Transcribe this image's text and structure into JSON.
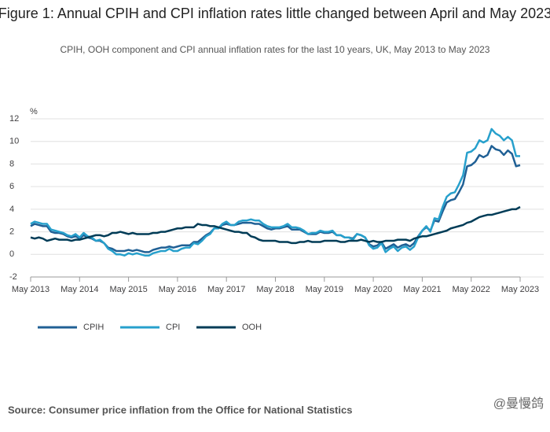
{
  "chart_data": {
    "type": "line",
    "title": "Figure 1: Annual CPIH and CPI inflation rates little changed between April and May 2023",
    "subtitle": "CPIH, OOH component and CPI annual inflation rates for the last 10 years, UK, May 2013 to May 2023",
    "y_unit": "%",
    "source": "Source: Consumer price inflation from the Office for National Statistics",
    "watermark": "@曼慢鸽",
    "x": [
      "2013-05",
      "2013-06",
      "2013-07",
      "2013-08",
      "2013-09",
      "2013-10",
      "2013-11",
      "2013-12",
      "2014-01",
      "2014-02",
      "2014-03",
      "2014-04",
      "2014-05",
      "2014-06",
      "2014-07",
      "2014-08",
      "2014-09",
      "2014-10",
      "2014-11",
      "2014-12",
      "2015-01",
      "2015-02",
      "2015-03",
      "2015-04",
      "2015-05",
      "2015-06",
      "2015-07",
      "2015-08",
      "2015-09",
      "2015-10",
      "2015-11",
      "2015-12",
      "2016-01",
      "2016-02",
      "2016-03",
      "2016-04",
      "2016-05",
      "2016-06",
      "2016-07",
      "2016-08",
      "2016-09",
      "2016-10",
      "2016-11",
      "2016-12",
      "2017-01",
      "2017-02",
      "2017-03",
      "2017-04",
      "2017-05",
      "2017-06",
      "2017-07",
      "2017-08",
      "2017-09",
      "2017-10",
      "2017-11",
      "2017-12",
      "2018-01",
      "2018-02",
      "2018-03",
      "2018-04",
      "2018-05",
      "2018-06",
      "2018-07",
      "2018-08",
      "2018-09",
      "2018-10",
      "2018-11",
      "2018-12",
      "2019-01",
      "2019-02",
      "2019-03",
      "2019-04",
      "2019-05",
      "2019-06",
      "2019-07",
      "2019-08",
      "2019-09",
      "2019-10",
      "2019-11",
      "2019-12",
      "2020-01",
      "2020-02",
      "2020-03",
      "2020-04",
      "2020-05",
      "2020-06",
      "2020-07",
      "2020-08",
      "2020-09",
      "2020-10",
      "2020-11",
      "2020-12",
      "2021-01",
      "2021-02",
      "2021-03",
      "2021-04",
      "2021-05",
      "2021-06",
      "2021-07",
      "2021-08",
      "2021-09",
      "2021-10",
      "2021-11",
      "2021-12",
      "2022-01",
      "2022-02",
      "2022-03",
      "2022-04",
      "2022-05",
      "2022-06",
      "2022-07",
      "2022-08",
      "2022-09",
      "2022-10",
      "2022-11",
      "2022-12",
      "2023-01",
      "2023-02",
      "2023-03",
      "2023-04",
      "2023-05"
    ],
    "xticks": [
      {
        "value": "2013-05",
        "label": "May 2013"
      },
      {
        "value": "2014-05",
        "label": "May 2014"
      },
      {
        "value": "2015-05",
        "label": "May 2015"
      },
      {
        "value": "2016-05",
        "label": "May 2016"
      },
      {
        "value": "2017-05",
        "label": "May 2017"
      },
      {
        "value": "2018-05",
        "label": "May 2018"
      },
      {
        "value": "2019-05",
        "label": "May 2019"
      },
      {
        "value": "2020-05",
        "label": "May 2020"
      },
      {
        "value": "2021-05",
        "label": "May 2021"
      },
      {
        "value": "2022-05",
        "label": "May 2022"
      },
      {
        "value": "2023-05",
        "label": "May 2023"
      }
    ],
    "ylim": [
      -2,
      12
    ],
    "yticks": [
      -2,
      0,
      2,
      4,
      6,
      8,
      10,
      12
    ],
    "grid": true,
    "legend": "bottom",
    "series": [
      {
        "name": "CPIH",
        "color": "#206095",
        "values": [
          2.5,
          2.7,
          2.6,
          2.5,
          2.5,
          2.0,
          1.9,
          1.9,
          1.8,
          1.6,
          1.5,
          1.6,
          1.4,
          1.7,
          1.5,
          1.4,
          1.2,
          1.2,
          1.0,
          0.6,
          0.5,
          0.3,
          0.3,
          0.3,
          0.4,
          0.3,
          0.4,
          0.3,
          0.2,
          0.2,
          0.4,
          0.5,
          0.6,
          0.6,
          0.7,
          0.6,
          0.7,
          0.8,
          0.8,
          0.8,
          1.1,
          1.1,
          1.4,
          1.7,
          1.9,
          2.3,
          2.3,
          2.6,
          2.7,
          2.6,
          2.6,
          2.7,
          2.8,
          2.8,
          2.8,
          2.7,
          2.7,
          2.5,
          2.3,
          2.2,
          2.3,
          2.3,
          2.4,
          2.5,
          2.2,
          2.2,
          2.2,
          2.0,
          1.8,
          1.8,
          1.8,
          2.0,
          1.9,
          1.9,
          2.0,
          1.7,
          1.7,
          1.5,
          1.5,
          1.4,
          1.8,
          1.7,
          1.5,
          0.9,
          0.7,
          0.8,
          1.1,
          0.5,
          0.7,
          0.9,
          0.6,
          0.8,
          0.9,
          0.7,
          1.0,
          1.6,
          2.1,
          2.4,
          2.1,
          3.0,
          2.9,
          3.8,
          4.6,
          4.8,
          4.9,
          5.5,
          6.2,
          7.8,
          7.9,
          8.2,
          8.8,
          8.6,
          8.8,
          9.6,
          9.3,
          9.2,
          8.8,
          9.2,
          8.9,
          7.8,
          7.9
        ]
      },
      {
        "name": "CPI",
        "color": "#27a0cc",
        "values": [
          2.7,
          2.9,
          2.8,
          2.7,
          2.7,
          2.2,
          2.1,
          2.0,
          1.9,
          1.7,
          1.6,
          1.8,
          1.5,
          1.9,
          1.6,
          1.5,
          1.2,
          1.3,
          1.0,
          0.5,
          0.3,
          0.0,
          0.0,
          -0.1,
          0.1,
          0.0,
          0.1,
          0.0,
          -0.1,
          -0.1,
          0.1,
          0.2,
          0.3,
          0.3,
          0.5,
          0.3,
          0.3,
          0.5,
          0.6,
          0.6,
          1.0,
          0.9,
          1.2,
          1.6,
          1.8,
          2.3,
          2.3,
          2.7,
          2.9,
          2.6,
          2.6,
          2.9,
          3.0,
          3.0,
          3.1,
          3.0,
          3.0,
          2.7,
          2.5,
          2.4,
          2.4,
          2.4,
          2.5,
          2.7,
          2.4,
          2.4,
          2.3,
          2.1,
          1.8,
          1.9,
          1.9,
          2.1,
          2.0,
          2.0,
          2.1,
          1.7,
          1.7,
          1.5,
          1.5,
          1.3,
          1.8,
          1.7,
          1.5,
          0.8,
          0.5,
          0.6,
          1.0,
          0.2,
          0.5,
          0.7,
          0.3,
          0.6,
          0.7,
          0.4,
          0.7,
          1.5,
          2.1,
          2.5,
          2.0,
          3.2,
          3.1,
          4.2,
          5.1,
          5.4,
          5.5,
          6.2,
          7.0,
          9.0,
          9.1,
          9.4,
          10.1,
          9.9,
          10.1,
          11.1,
          10.7,
          10.5,
          10.1,
          10.4,
          10.1,
          8.7,
          8.7
        ]
      },
      {
        "name": "OOH",
        "color": "#003c57",
        "values": [
          1.5,
          1.4,
          1.5,
          1.4,
          1.2,
          1.3,
          1.4,
          1.3,
          1.3,
          1.3,
          1.2,
          1.3,
          1.3,
          1.4,
          1.5,
          1.6,
          1.7,
          1.7,
          1.6,
          1.7,
          1.9,
          1.9,
          2.0,
          1.9,
          1.8,
          1.9,
          1.8,
          1.8,
          1.8,
          1.8,
          1.9,
          1.9,
          2.0,
          2.0,
          2.1,
          2.2,
          2.3,
          2.3,
          2.4,
          2.4,
          2.4,
          2.7,
          2.6,
          2.6,
          2.5,
          2.5,
          2.4,
          2.3,
          2.2,
          2.1,
          2.0,
          2.0,
          1.9,
          1.9,
          1.6,
          1.5,
          1.3,
          1.2,
          1.2,
          1.2,
          1.2,
          1.1,
          1.1,
          1.1,
          1.0,
          1.0,
          1.1,
          1.1,
          1.2,
          1.1,
          1.1,
          1.1,
          1.2,
          1.2,
          1.2,
          1.2,
          1.1,
          1.1,
          1.2,
          1.2,
          1.2,
          1.3,
          1.2,
          1.1,
          1.2,
          1.1,
          1.1,
          1.2,
          1.2,
          1.2,
          1.3,
          1.3,
          1.3,
          1.2,
          1.4,
          1.5,
          1.6,
          1.6,
          1.7,
          1.8,
          1.9,
          2.0,
          2.1,
          2.3,
          2.4,
          2.5,
          2.6,
          2.8,
          2.9,
          3.1,
          3.3,
          3.4,
          3.5,
          3.5,
          3.6,
          3.7,
          3.8,
          3.9,
          4.0,
          4.0,
          4.2
        ]
      }
    ]
  }
}
